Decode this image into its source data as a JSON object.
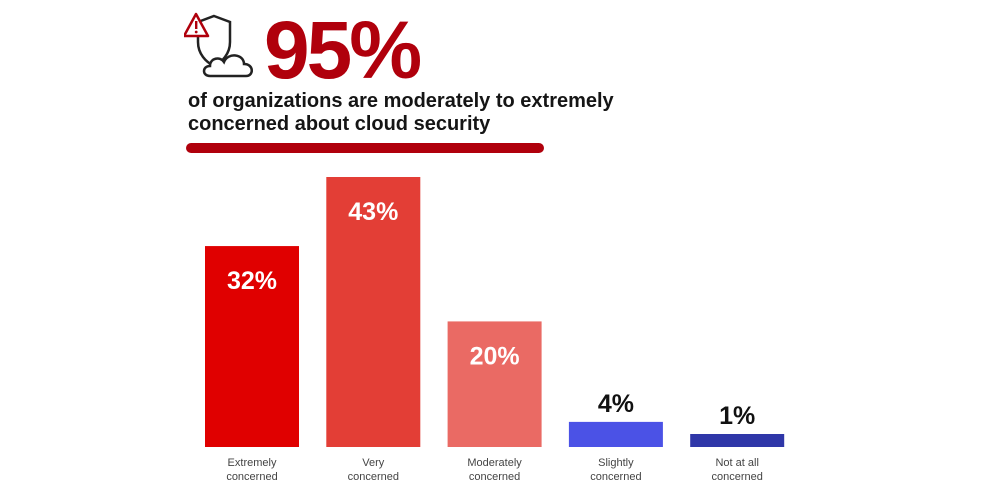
{
  "header": {
    "headline": "95%",
    "subtitle": "of organizations are moderately to extremely concerned about cloud security",
    "icon": "shield-warning-cloud-icon"
  },
  "chart_data": {
    "type": "bar",
    "title": "",
    "categories": [
      [
        "Extremely",
        "concerned"
      ],
      [
        "Very",
        "concerned"
      ],
      [
        "Moderately",
        "concerned"
      ],
      [
        "Slightly",
        "concerned"
      ],
      [
        "Not at all",
        "concerned"
      ]
    ],
    "values": [
      32,
      43,
      20,
      4,
      1
    ],
    "value_labels": [
      "32%",
      "43%",
      "20%",
      "4%",
      "1%"
    ],
    "colors": [
      "#e00000",
      "#e33e36",
      "#ea6a64",
      "#4b52e6",
      "#2f37a8"
    ],
    "label_colors": [
      "#ffffff",
      "#ffffff",
      "#ffffff",
      "#111111",
      "#111111"
    ],
    "ylim": [
      0,
      43
    ],
    "grid": false,
    "accent": "#b0000c"
  }
}
